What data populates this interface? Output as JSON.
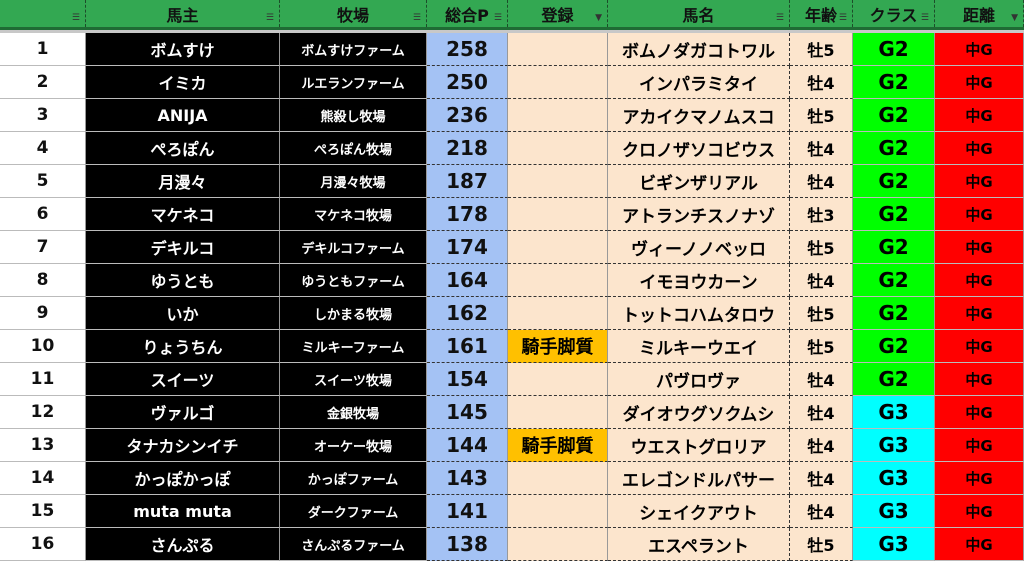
{
  "header": [
    "",
    "馬主",
    "牧場",
    "総合P",
    "登録",
    "馬名",
    "年齢",
    "クラス",
    "距離"
  ],
  "filter_icons": [
    "filter-icon",
    "filter-icon",
    "filter-icon",
    "filter-icon",
    "filter-active-icon",
    "filter-icon",
    "filter-icon",
    "filter-icon",
    "filter-active-icon"
  ],
  "colors": {
    "header": "#33a852",
    "points": "#a4c2f4",
    "peach": "#fce5cd",
    "registered": "#ffc000",
    "G2": "#00ff00",
    "G3": "#00ffff",
    "distance": "#ff0000"
  },
  "rows": [
    [
      "1",
      "ボムすけ",
      "ボムすけファーム",
      "258",
      "",
      "ボムノダガコトワル",
      "牡5",
      "G2",
      "中G"
    ],
    [
      "2",
      "イミカ",
      "ルエランファーム",
      "250",
      "",
      "インパラミタイ",
      "牡4",
      "G2",
      "中G"
    ],
    [
      "3",
      "ANIJA",
      "熊殺し牧場",
      "236",
      "",
      "アカイクマノムスコ",
      "牡5",
      "G2",
      "中G"
    ],
    [
      "4",
      "ぺろぽん",
      "ぺろぽん牧場",
      "218",
      "",
      "クロノザソコビウス",
      "牡4",
      "G2",
      "中G"
    ],
    [
      "5",
      "月漫々",
      "月漫々牧場",
      "187",
      "",
      "ビギンザリアル",
      "牡4",
      "G2",
      "中G"
    ],
    [
      "6",
      "マケネコ",
      "マケネコ牧場",
      "178",
      "",
      "アトランチスノナゾ",
      "牡3",
      "G2",
      "中G"
    ],
    [
      "7",
      "デキルコ",
      "デキルコファーム",
      "174",
      "",
      "ヴィーノノベッロ",
      "牡5",
      "G2",
      "中G"
    ],
    [
      "8",
      "ゆうとも",
      "ゆうともファーム",
      "164",
      "",
      "イモヨウカーン",
      "牡4",
      "G2",
      "中G"
    ],
    [
      "9",
      "いか",
      "しかまる牧場",
      "162",
      "",
      "トットコハムタロウ",
      "牡5",
      "G2",
      "中G"
    ],
    [
      "10",
      "りょうちん",
      "ミルキーファーム",
      "161",
      "騎手脚質",
      "ミルキーウエイ",
      "牡5",
      "G2",
      "中G"
    ],
    [
      "11",
      "スイーツ",
      "スイーツ牧場",
      "154",
      "",
      "パヴロヴァ",
      "牡4",
      "G2",
      "中G"
    ],
    [
      "12",
      "ヴァルゴ",
      "金銀牧場",
      "145",
      "",
      "ダイオウグソクムシ",
      "牡4",
      "G3",
      "中G"
    ],
    [
      "13",
      "タナカシンイチ",
      "オーケー牧場",
      "144",
      "騎手脚質",
      "ウエストグロリア",
      "牡4",
      "G3",
      "中G"
    ],
    [
      "14",
      "かっぽかっぽ",
      "かっぽファーム",
      "143",
      "",
      "エレゴンドルパサー",
      "牡4",
      "G3",
      "中G"
    ],
    [
      "15",
      "muta muta",
      "ダークファーム",
      "141",
      "",
      "シェイクアウト",
      "牡4",
      "G3",
      "中G"
    ],
    [
      "16",
      "さんぷる",
      "さんぷるファーム",
      "138",
      "",
      "エスペラント",
      "牡5",
      "G3",
      "中G"
    ]
  ]
}
